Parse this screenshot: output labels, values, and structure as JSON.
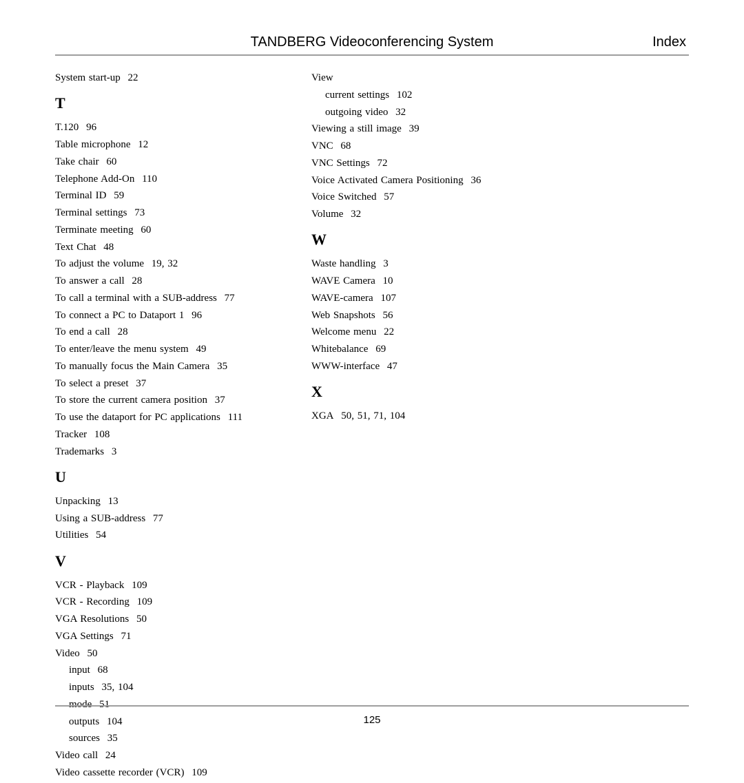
{
  "header": {
    "title": "TANDBERG Videoconferencing System",
    "section": "Index"
  },
  "page_number": "125",
  "columns": [
    {
      "blocks": [
        {
          "type": "entry",
          "term": "System start-up",
          "pages": "22"
        },
        {
          "type": "letter",
          "label": "T"
        },
        {
          "type": "entry",
          "term": "T.120",
          "pages": "96"
        },
        {
          "type": "entry",
          "term": "Table microphone",
          "pages": "12"
        },
        {
          "type": "entry",
          "term": "Take chair",
          "pages": "60"
        },
        {
          "type": "entry",
          "term": "Telephone Add-On",
          "pages": "110"
        },
        {
          "type": "entry",
          "term": "Terminal ID",
          "pages": "59"
        },
        {
          "type": "entry",
          "term": "Terminal settings",
          "pages": "73"
        },
        {
          "type": "entry",
          "term": "Terminate meeting",
          "pages": "60"
        },
        {
          "type": "entry",
          "term": "Text Chat",
          "pages": "48"
        },
        {
          "type": "entry",
          "term": "To adjust the volume",
          "pages": "19, 32"
        },
        {
          "type": "entry",
          "term": "To answer a call",
          "pages": "28"
        },
        {
          "type": "entry",
          "term": "To call a terminal with a SUB-address",
          "pages": "77"
        },
        {
          "type": "entry",
          "term": "To connect a PC to Dataport 1",
          "pages": "96"
        },
        {
          "type": "entry",
          "term": "To end a call",
          "pages": "28"
        },
        {
          "type": "entry",
          "term": "To enter/leave the menu system",
          "pages": "49"
        },
        {
          "type": "entry",
          "term": "To manually focus the Main Camera",
          "pages": "35"
        },
        {
          "type": "entry",
          "term": "To select a preset",
          "pages": "37"
        },
        {
          "type": "entry",
          "term": "To store the current camera position",
          "pages": "37"
        },
        {
          "type": "entry",
          "term": "To use the dataport for PC applications",
          "pages": "111"
        },
        {
          "type": "entry",
          "term": "Tracker",
          "pages": "108"
        },
        {
          "type": "entry",
          "term": "Trademarks",
          "pages": "3"
        },
        {
          "type": "letter",
          "label": "U"
        },
        {
          "type": "entry",
          "term": "Unpacking",
          "pages": "13"
        },
        {
          "type": "entry",
          "term": "Using a SUB-address",
          "pages": "77"
        },
        {
          "type": "entry",
          "term": "Utilities",
          "pages": "54"
        },
        {
          "type": "letter",
          "label": "V"
        },
        {
          "type": "entry",
          "term": "VCR - Playback",
          "pages": "109"
        },
        {
          "type": "entry",
          "term": "VCR - Recording",
          "pages": "109"
        },
        {
          "type": "entry",
          "term": "VGA Resolutions",
          "pages": "50"
        },
        {
          "type": "entry",
          "term": "VGA Settings",
          "pages": "71"
        },
        {
          "type": "entry",
          "term": "Video",
          "pages": "50"
        },
        {
          "type": "sub",
          "term": "input",
          "pages": "68"
        },
        {
          "type": "sub",
          "term": "inputs",
          "pages": "35, 104"
        },
        {
          "type": "sub",
          "term": "mode",
          "pages": "51"
        },
        {
          "type": "sub",
          "term": "outputs",
          "pages": "104"
        },
        {
          "type": "sub",
          "term": "sources",
          "pages": "35"
        },
        {
          "type": "entry",
          "term": "Video call",
          "pages": "24"
        },
        {
          "type": "entry",
          "term": "Video cassette recorder (VCR)",
          "pages": "109"
        }
      ]
    },
    {
      "blocks": [
        {
          "type": "entry",
          "term": "View",
          "pages": ""
        },
        {
          "type": "sub",
          "term": "current settings",
          "pages": "102"
        },
        {
          "type": "sub",
          "term": "outgoing video",
          "pages": "32"
        },
        {
          "type": "entry",
          "term": "Viewing a still image",
          "pages": "39"
        },
        {
          "type": "entry",
          "term": "VNC",
          "pages": "68"
        },
        {
          "type": "entry",
          "term": "VNC Settings",
          "pages": "72"
        },
        {
          "type": "entry",
          "term": "Voice Activated Camera Positioning",
          "pages": "36"
        },
        {
          "type": "entry",
          "term": "Voice Switched",
          "pages": "57"
        },
        {
          "type": "entry",
          "term": "Volume",
          "pages": "32"
        },
        {
          "type": "letter",
          "label": "W"
        },
        {
          "type": "entry",
          "term": "Waste handling",
          "pages": "3"
        },
        {
          "type": "entry",
          "term": "WAVE Camera",
          "pages": "10"
        },
        {
          "type": "entry",
          "term": "WAVE-camera",
          "pages": "107"
        },
        {
          "type": "entry",
          "term": "Web Snapshots",
          "pages": "56"
        },
        {
          "type": "entry",
          "term": "Welcome menu",
          "pages": "22"
        },
        {
          "type": "entry",
          "term": "Whitebalance",
          "pages": "69"
        },
        {
          "type": "entry",
          "term": "WWW-interface",
          "pages": "47"
        },
        {
          "type": "letter",
          "label": "X"
        },
        {
          "type": "entry",
          "term": "XGA",
          "pages": "50, 51, 71, 104"
        }
      ]
    }
  ]
}
